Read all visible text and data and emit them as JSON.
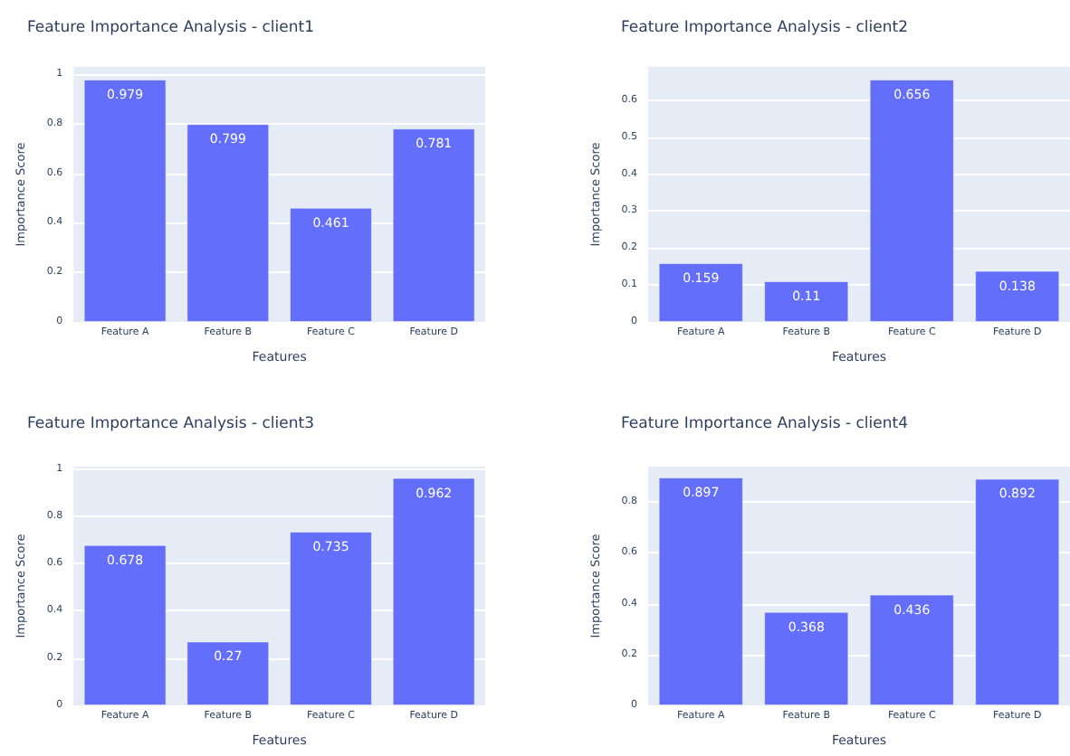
{
  "chart_data": [
    {
      "type": "bar",
      "title": "Feature Importance Analysis - client1",
      "xlabel": "Features",
      "ylabel": "Importance Score",
      "categories": [
        "Feature A",
        "Feature B",
        "Feature C",
        "Feature D"
      ],
      "values": [
        0.979,
        0.799,
        0.461,
        0.781
      ],
      "color": "#636efa",
      "ylim": [
        0,
        1.03
      ],
      "yticks": [
        0,
        0.2,
        0.4,
        0.6,
        0.8,
        1
      ],
      "grid": "y",
      "data_labels": true
    },
    {
      "type": "bar",
      "title": "Feature Importance Analysis - client2",
      "xlabel": "Features",
      "ylabel": "Importance Score",
      "categories": [
        "Feature A",
        "Feature B",
        "Feature C",
        "Feature D"
      ],
      "values": [
        0.159,
        0.11,
        0.656,
        0.138
      ],
      "color": "#636efa",
      "ylim": [
        0,
        0.69
      ],
      "yticks": [
        0,
        0.1,
        0.2,
        0.3,
        0.4,
        0.5,
        0.6
      ],
      "grid": "y",
      "data_labels": true
    },
    {
      "type": "bar",
      "title": "Feature Importance Analysis - client3",
      "xlabel": "Features",
      "ylabel": "Importance Score",
      "categories": [
        "Feature A",
        "Feature B",
        "Feature C",
        "Feature D"
      ],
      "values": [
        0.678,
        0.27,
        0.735,
        0.962
      ],
      "color": "#636efa",
      "ylim": [
        0,
        1.01
      ],
      "yticks": [
        0,
        0.2,
        0.4,
        0.6,
        0.8,
        1
      ],
      "grid": "y",
      "data_labels": true
    },
    {
      "type": "bar",
      "title": "Feature Importance Analysis - client4",
      "xlabel": "Features",
      "ylabel": "Importance Score",
      "categories": [
        "Feature A",
        "Feature B",
        "Feature C",
        "Feature D"
      ],
      "values": [
        0.897,
        0.368,
        0.436,
        0.892
      ],
      "color": "#636efa",
      "ylim": [
        0,
        0.94
      ],
      "yticks": [
        0,
        0.2,
        0.4,
        0.6,
        0.8
      ],
      "grid": "y",
      "data_labels": true
    }
  ]
}
